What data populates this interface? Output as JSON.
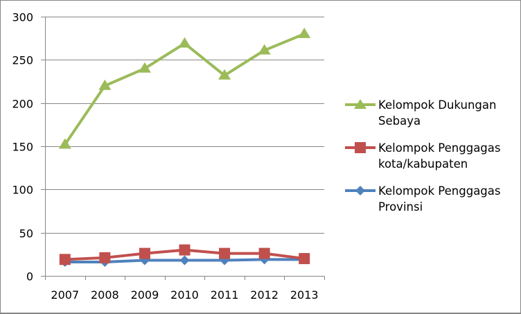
{
  "chart_data": {
    "type": "line",
    "title": "",
    "xlabel": "",
    "ylabel": "",
    "categories": [
      "2007",
      "2008",
      "2009",
      "2010",
      "2011",
      "2012",
      "2013"
    ],
    "ylim": [
      0,
      300
    ],
    "yticks": [
      0,
      50,
      100,
      150,
      200,
      250,
      300
    ],
    "grid": "horizontal",
    "legend_position": "right",
    "series": [
      {
        "name": "Kelompok Dukungan Sebaya",
        "legend_lines": [
          "Kelompok Dukungan",
          "Sebaya"
        ],
        "color": "#9BBB59",
        "marker": "triangle",
        "values": [
          152,
          220,
          240,
          269,
          232,
          261,
          280
        ]
      },
      {
        "name": "Kelompok Penggagas kota/kabupaten",
        "legend_lines": [
          "Kelompok Penggagas",
          "kota/kabupaten"
        ],
        "color": "#C0504D",
        "marker": "square",
        "values": [
          19,
          21,
          26,
          30,
          26,
          26,
          20
        ]
      },
      {
        "name": "Kelompok Penggagas Provinsi",
        "legend_lines": [
          "Kelompok Penggagas",
          "Provinsi"
        ],
        "color": "#4F81BD",
        "marker": "diamond",
        "values": [
          16,
          16,
          18,
          18,
          18,
          19,
          19
        ]
      }
    ]
  },
  "legend": {
    "items": [
      {
        "line1": "Kelompok Dukungan",
        "line2": "Sebaya"
      },
      {
        "line1": "Kelompok Penggagas",
        "line2": "kota/kabupaten"
      },
      {
        "line1": "Kelompok Penggagas",
        "line2": "Provinsi"
      }
    ]
  }
}
